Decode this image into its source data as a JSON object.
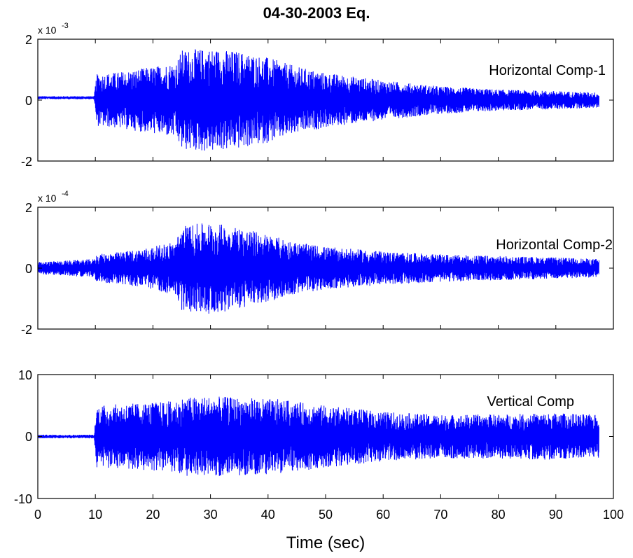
{
  "chart_data": {
    "type": "line",
    "title": "04-30-2003 Eq.",
    "xlabel": "Time (sec)",
    "xlim": [
      0,
      100
    ],
    "x_ticks": [
      "0",
      "10",
      "20",
      "30",
      "40",
      "50",
      "60",
      "70",
      "80",
      "90",
      "100"
    ],
    "color": "#0000ff",
    "duration": 97.5,
    "panels": [
      {
        "label": "Horizontal Comp-1",
        "ylim": [
          -2,
          2
        ],
        "y_ticks": [
          "2",
          "0",
          "-2"
        ],
        "exponent_base": "x 10",
        "exponent_sup": "-3",
        "pre_event_level": 0.08,
        "envelope": [
          [
            0,
            0.05
          ],
          [
            9.8,
            0.05
          ],
          [
            10.2,
            0.85
          ],
          [
            15,
            0.95
          ],
          [
            20,
            1.1
          ],
          [
            24,
            1.25
          ],
          [
            25,
            1.65
          ],
          [
            30,
            1.7
          ],
          [
            35,
            1.6
          ],
          [
            40,
            1.4
          ],
          [
            45,
            1.1
          ],
          [
            50,
            0.9
          ],
          [
            60,
            0.65
          ],
          [
            70,
            0.45
          ],
          [
            80,
            0.35
          ],
          [
            90,
            0.3
          ],
          [
            97.5,
            0.25
          ]
        ]
      },
      {
        "label": "Horizontal Comp-2",
        "ylim": [
          -2,
          2
        ],
        "y_ticks": [
          "2",
          "0",
          "-2"
        ],
        "exponent_base": "x 10",
        "exponent_sup": "-4",
        "pre_event_level": 0,
        "envelope": [
          [
            0,
            0.2
          ],
          [
            5,
            0.25
          ],
          [
            9.8,
            0.3
          ],
          [
            10.2,
            0.45
          ],
          [
            15,
            0.55
          ],
          [
            20,
            0.7
          ],
          [
            24,
            0.9
          ],
          [
            25,
            1.4
          ],
          [
            30,
            1.5
          ],
          [
            35,
            1.35
          ],
          [
            40,
            1.1
          ],
          [
            45,
            0.85
          ],
          [
            50,
            0.7
          ],
          [
            60,
            0.55
          ],
          [
            70,
            0.45
          ],
          [
            80,
            0.4
          ],
          [
            90,
            0.35
          ],
          [
            97.5,
            0.3
          ]
        ]
      },
      {
        "label": "Vertical Comp",
        "ylim": [
          -10,
          10
        ],
        "y_ticks": [
          "10",
          "0",
          "-10"
        ],
        "exponent_base": "",
        "exponent_sup": "",
        "pre_event_level": 0,
        "envelope": [
          [
            0,
            0.3
          ],
          [
            9.8,
            0.3
          ],
          [
            10.2,
            5.0
          ],
          [
            15,
            5.3
          ],
          [
            20,
            5.5
          ],
          [
            24,
            5.8
          ],
          [
            25,
            6.3
          ],
          [
            30,
            6.5
          ],
          [
            35,
            6.3
          ],
          [
            42,
            6.0
          ],
          [
            50,
            5.0
          ],
          [
            60,
            4.0
          ],
          [
            70,
            3.5
          ],
          [
            80,
            3.6
          ],
          [
            90,
            3.8
          ],
          [
            97.5,
            3.5
          ]
        ]
      }
    ]
  }
}
